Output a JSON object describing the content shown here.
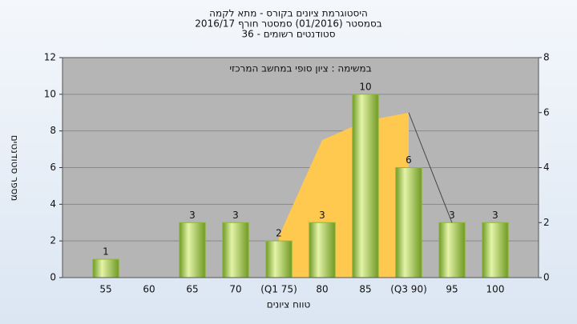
{
  "chart_data": {
    "type": "bar",
    "title": "היסטוגרמת ציונים בקורס - מתא לקמה",
    "subtitle": "בסמסטר  (01/2016)  סמסטר חורף 2016/17",
    "subtitle2": "סטודנטים רשומים - 36",
    "annotation": "במשימה : ציון סופי במחשב המרכזי",
    "y_label": "מספר סטודנטים",
    "x_label": "טווח ציונים",
    "categories": [
      "55",
      "60",
      "65",
      "70",
      "(Q1 75)",
      "80",
      "85",
      "(Q3 90)",
      "95",
      "100"
    ],
    "values": [
      1,
      null,
      3,
      3,
      2,
      3,
      10,
      6,
      3,
      3
    ],
    "color": "#8fb83a",
    "area": {
      "color": "#ffc84f",
      "values": [
        null,
        null,
        null,
        null,
        1.5,
        5,
        5.7,
        6,
        null,
        null
      ]
    },
    "line": {
      "color": "#444444",
      "values": [
        null,
        null,
        null,
        null,
        null,
        null,
        null,
        6,
        2,
        null
      ]
    },
    "ylim": [
      0,
      12
    ],
    "yticks": [
      0,
      2,
      4,
      6,
      8,
      10,
      12
    ],
    "y2lim": [
      0,
      8
    ],
    "y2ticks": [
      0,
      2,
      4,
      6,
      8
    ],
    "grid": true
  }
}
